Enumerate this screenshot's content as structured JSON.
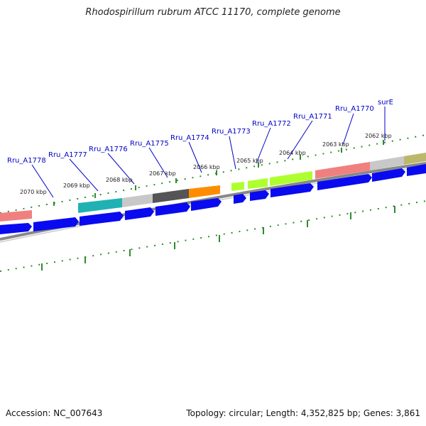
{
  "header": {
    "title": "Rhodospirillum rubrum ATCC 11170, complete genome"
  },
  "footer": {
    "accession": "Accession: NC_007643",
    "summary": "Topology: circular; Length: 4,352,825 bp; Genes: 3,861"
  },
  "kbp_labels": [
    {
      "text": "2070 kbp"
    },
    {
      "text": "2069 kbp"
    },
    {
      "text": "2068 kbp"
    },
    {
      "text": "2067 kbp"
    },
    {
      "text": "2066 kbp"
    },
    {
      "text": "2065 kbp"
    },
    {
      "text": "2064 kbp"
    },
    {
      "text": "2063 kbp"
    },
    {
      "text": "2062 kbp"
    }
  ],
  "gene_labels": [
    {
      "text": "Rru_A1778"
    },
    {
      "text": "Rru_A1777"
    },
    {
      "text": "Rru_A1776"
    },
    {
      "text": "Rru_A1775"
    },
    {
      "text": "Rru_A1774"
    },
    {
      "text": "Rru_A1773"
    },
    {
      "text": "Rru_A1772"
    },
    {
      "text": "Rru_A1771"
    },
    {
      "text": "Rru_A1770"
    },
    {
      "text": "surE"
    }
  ],
  "colors": {
    "label": "#0000c8",
    "cds_arrow": "#0a0af0",
    "backbone": "#888888",
    "tick": "#2e8b2e",
    "salmon": "#f08080",
    "teal": "#20b2b2",
    "light_gray": "#c8c8c8",
    "dark_gray": "#555555",
    "orange": "#ff8c00",
    "lime": "#adff2f",
    "olive": "#bdb76b"
  }
}
